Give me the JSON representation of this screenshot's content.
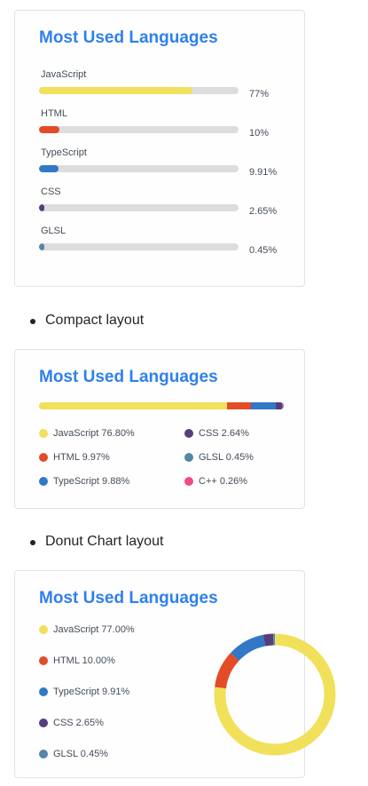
{
  "normal_card": {
    "title": "Most Used Languages",
    "languages": [
      {
        "name": "JavaScript",
        "percent_label": "77%",
        "percent": 77,
        "color": "#f1e05a"
      },
      {
        "name": "HTML",
        "percent_label": "10%",
        "percent": 10,
        "color": "#e34c26"
      },
      {
        "name": "TypeScript",
        "percent_label": "9.91%",
        "percent": 9.91,
        "color": "#3178c6"
      },
      {
        "name": "CSS",
        "percent_label": "2.65%",
        "percent": 2.65,
        "color": "#563d7c"
      },
      {
        "name": "GLSL",
        "percent_label": "0.45%",
        "percent": 0.45,
        "color": "#5686a5"
      }
    ]
  },
  "bullets": {
    "compact": "Compact layout",
    "donut": "Donut Chart layout"
  },
  "compact_card": {
    "title": "Most Used Languages",
    "languages": [
      {
        "label": "JavaScript 76.80%",
        "percent": 76.8,
        "color": "#f1e05a"
      },
      {
        "label": "HTML 9.97%",
        "percent": 9.97,
        "color": "#e34c26"
      },
      {
        "label": "TypeScript 9.88%",
        "percent": 9.88,
        "color": "#3178c6"
      },
      {
        "label": "CSS 2.64%",
        "percent": 2.64,
        "color": "#563d7c"
      },
      {
        "label": "GLSL 0.45%",
        "percent": 0.45,
        "color": "#5686a5"
      },
      {
        "label": "C++ 0.26%",
        "percent": 0.26,
        "color": "#f34b7d"
      }
    ]
  },
  "donut_card": {
    "title": "Most Used Languages",
    "legend": [
      {
        "label": "JavaScript 77.00%",
        "color": "#f1e05a"
      },
      {
        "label": "HTML 10.00%",
        "color": "#e34c26"
      },
      {
        "label": "TypeScript 9.91%",
        "color": "#3178c6"
      },
      {
        "label": "CSS 2.65%",
        "color": "#563d7c"
      },
      {
        "label": "GLSL 0.45%",
        "color": "#5686a5"
      }
    ]
  },
  "chart_data": {
    "type": "pie",
    "categories": [
      "JavaScript",
      "HTML",
      "TypeScript",
      "CSS",
      "GLSL"
    ],
    "values": [
      77.0,
      10.0,
      9.91,
      2.65,
      0.45
    ],
    "colors": [
      "#f1e05a",
      "#e34c26",
      "#3178c6",
      "#563d7c",
      "#5686a5"
    ],
    "title": "Most Used Languages"
  }
}
